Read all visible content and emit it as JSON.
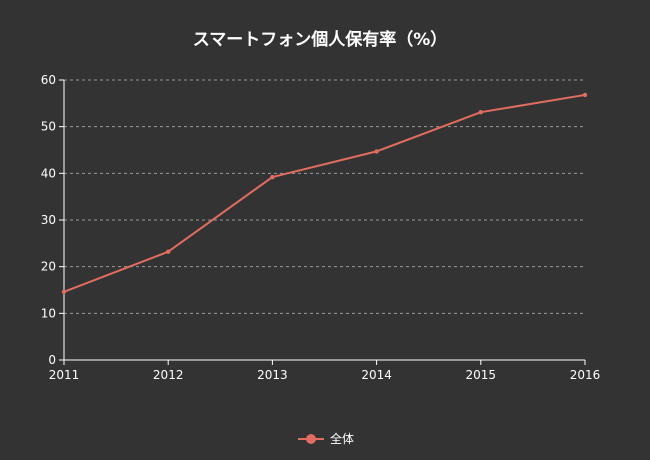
{
  "chart_data": {
    "type": "line",
    "title": "スマートフォン個人保有率（%）",
    "xlabel": "",
    "ylabel": "",
    "x": [
      2011,
      2012,
      2013,
      2014,
      2015,
      2016
    ],
    "x_tick_labels": [
      "2011",
      "2012",
      "2013",
      "2014",
      "2015",
      "2016"
    ],
    "y_ticks": [
      0,
      10,
      20,
      30,
      40,
      50,
      60
    ],
    "ylim": [
      0,
      60
    ],
    "grid": true,
    "legend_position": "bottom",
    "series": [
      {
        "name": "全体",
        "values": [
          14.6,
          23.2,
          39.2,
          44.7,
          53.1,
          56.8
        ],
        "color": "#e06d60"
      }
    ]
  },
  "colors": {
    "background": "#333333",
    "text": "#ffffff",
    "grid": "#9a9a9a",
    "axis": "#ffffff"
  }
}
